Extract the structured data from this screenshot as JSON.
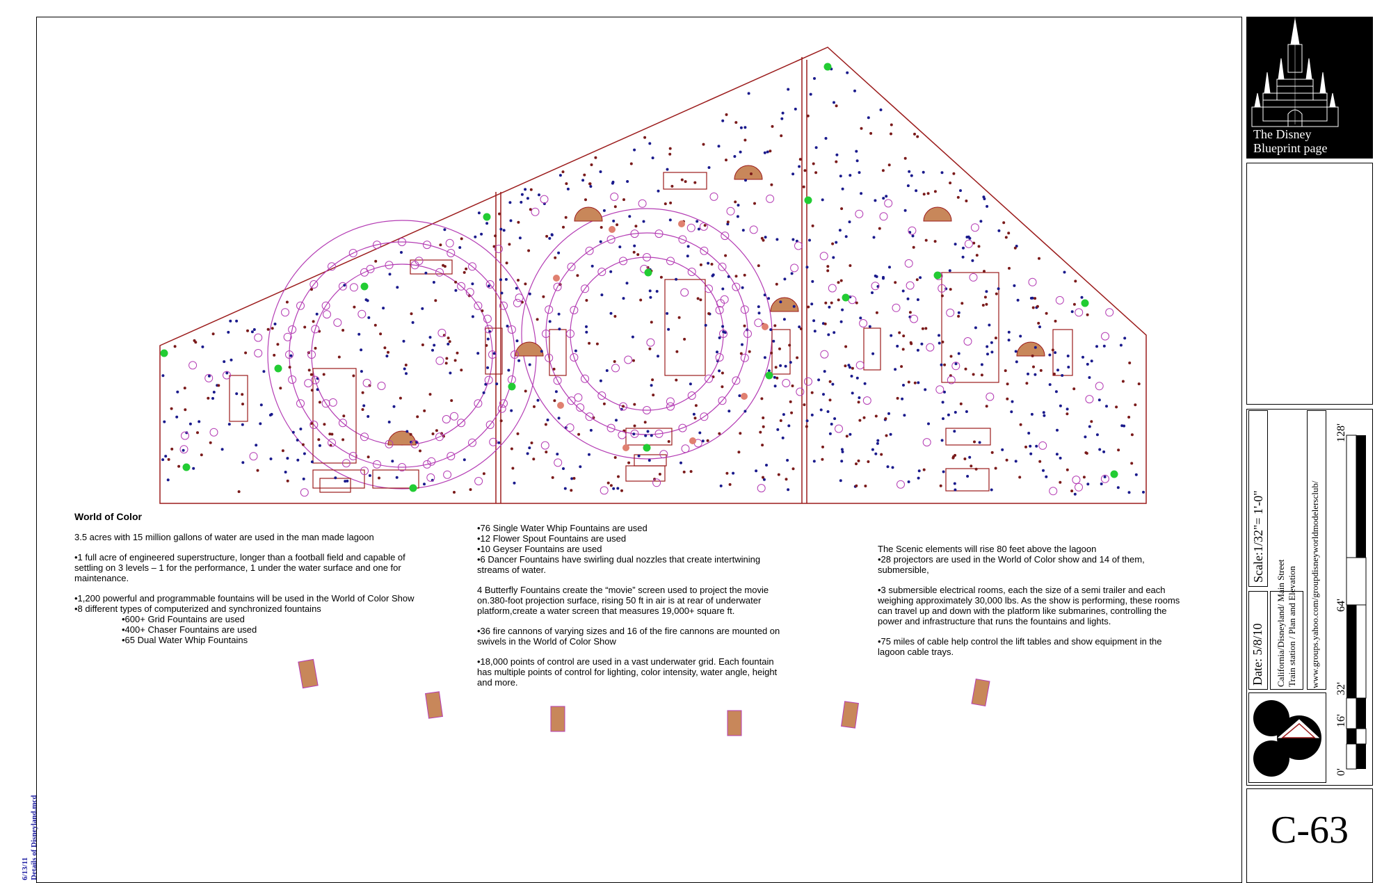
{
  "notes": {
    "title": "World of Color",
    "col1": [
      "3.5 acres with 15 million gallons of water are used in the man made lagoon",
      "•1 full acre of engineered superstructure, longer than a football field and capable of settling on 3 levels – 1 for the performance, 1 under the water surface and one for maintenance.",
      "•1,200 powerful and programmable fountains will be used in the World of Color Show",
      "•8 different types of computerized and synchronized fountains",
      "•600+ Grid Fountains are used",
      "•400+ Chaser Fountains are used",
      "•65 Dual Water Whip Fountains"
    ],
    "col2": [
      "•76 Single Water Whip Fountains are used",
      "•12 Flower Spout Fountains are used",
      "•10 Geyser Fountains are used",
      "•6 Dancer Fountains have swirling dual nozzles that create intertwining streams of water.",
      "4 Butterfly Fountains create the “movie” screen used to project the movie on.380-foot projection surface, rising 50 ft in air is at rear of underwater platform,create a water screen that measures 19,000+ square ft.",
      "•36 fire cannons of varying sizes and 16 of the fire cannons are mounted on swivels in the World of Color Show",
      "•18,000 points of control are used in a vast underwater grid. Each fountain has multiple points of control for lighting, color intensity, water angle, height and more."
    ],
    "col3": [
      "The Scenic elements will rise 80 feet above the lagoon",
      "•28 projectors are used in the World of Color show and 14 of them, submersible,",
      "•3 submersible electrical rooms, each the size of a semi trailer and each weighing approximately 30,000 lbs. As the show is performing, these rooms can travel up and down with the platform like submarines, controlling the power and infrastructure that runs the fountains and lights.",
      "•75 miles of cable help control the lift tables and show equipment in the lagoon cable trays."
    ]
  },
  "title_block": {
    "brand_line1": "The Disney",
    "brand_line2": "Blueprint page",
    "date": "Date:  5/8/10",
    "scale": "Scale:1/32\"= 1'-0\"",
    "project_line1": "California/Disneyland/ Main Street",
    "project_line2": "Train station / Plan and Elevation",
    "url": "www.groups.yahoo.com/groupdisneyworldmodelersclub/",
    "bar_labels": [
      "0'",
      "16'",
      "32'",
      "64'",
      "128'"
    ],
    "sheet": "C-63"
  },
  "margin_note": {
    "date": "6/13/11",
    "file": "Details of Disneyland.mcd"
  },
  "colors": {
    "outline": "#9b1b1b",
    "ring": "#b43cb4",
    "blue_dot": "#1a1a8c",
    "red_dot": "#7a1a1a",
    "green_dot": "#22cc33",
    "platform_fill": "#c8875a",
    "salmon": "#e08070"
  }
}
